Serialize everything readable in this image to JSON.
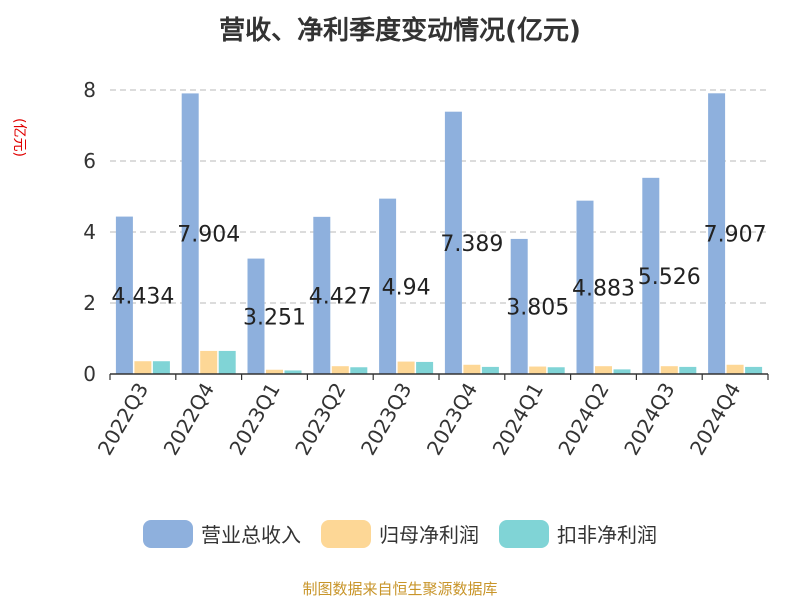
{
  "title": "营收、净利季度变动情况(亿元)",
  "unit_label": "(亿元)",
  "source": "制图数据来自恒生聚源数据库",
  "colors": {
    "revenue": "#8eb0dd",
    "net_profit": "#fdd796",
    "deducted_profit": "#80d4d6"
  },
  "chart_data": {
    "type": "bar",
    "title": "营收、净利季度变动情况(亿元)",
    "ylabel": "(亿元)",
    "ylim": [
      0,
      8
    ],
    "yticks": [
      0,
      2,
      4,
      6,
      8
    ],
    "grid": true,
    "legend_position": "bottom",
    "categories": [
      "2022Q3",
      "2022Q4",
      "2023Q1",
      "2023Q2",
      "2023Q3",
      "2023Q4",
      "2024Q1",
      "2024Q2",
      "2024Q3",
      "2024Q4"
    ],
    "series": [
      {
        "name": "营业总收入",
        "values": [
          4.434,
          7.904,
          3.251,
          4.427,
          4.94,
          7.389,
          3.805,
          4.883,
          5.526,
          7.907
        ],
        "labels": [
          "4.434",
          "7.904",
          "3.251",
          "4.427",
          "4.94",
          "7.389",
          "3.805",
          "4.883",
          "5.526",
          "7.907"
        ]
      },
      {
        "name": "归母净利润",
        "values": [
          0.36,
          0.65,
          0.12,
          0.22,
          0.35,
          0.26,
          0.21,
          0.22,
          0.22,
          0.26
        ]
      },
      {
        "name": "扣非净利润",
        "values": [
          0.36,
          0.65,
          0.1,
          0.19,
          0.34,
          0.2,
          0.19,
          0.13,
          0.2,
          0.2
        ]
      }
    ]
  }
}
